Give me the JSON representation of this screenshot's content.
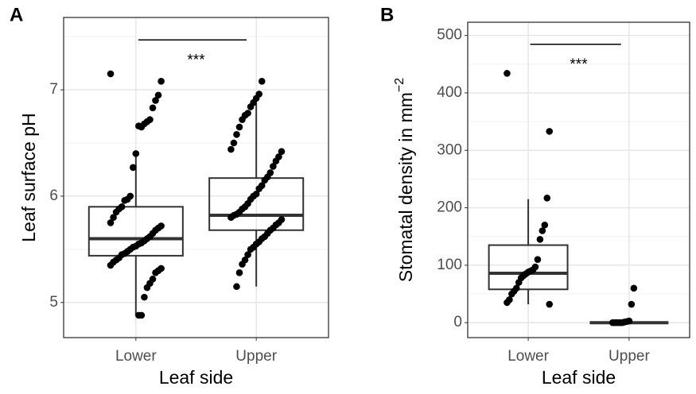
{
  "chart_data": [
    {
      "type": "box",
      "title": "A",
      "x_label": "Leaf side",
      "y_label": "Leaf surface pH",
      "categories": [
        "Lower",
        "Upper"
      ],
      "ylim": [
        4.67,
        7.68
      ],
      "yticks": [
        5,
        6,
        7
      ],
      "minor_grid": [
        5.5,
        6.5,
        7.5
      ],
      "grid": true,
      "significance": "***",
      "boxes": [
        {
          "q1": 5.44,
          "median": 5.6,
          "q3": 5.9,
          "whisker_low": 4.88,
          "whisker_high": 6.43,
          "points": [
            7.15,
            7.08,
            6.95,
            6.9,
            6.83,
            6.72,
            6.7,
            6.68,
            6.65,
            6.66,
            6.4,
            6.27,
            6.0,
            5.97,
            5.96,
            5.9,
            5.88,
            5.85,
            5.8,
            5.75,
            5.72,
            5.7,
            5.68,
            5.65,
            5.62,
            5.6,
            5.58,
            5.56,
            5.55,
            5.53,
            5.52,
            5.5,
            5.48,
            5.46,
            5.45,
            5.42,
            5.4,
            5.38,
            5.35,
            5.32,
            5.3,
            5.28,
            5.22,
            5.18,
            5.14,
            5.05,
            4.88,
            4.88
          ]
        },
        {
          "q1": 5.68,
          "median": 5.82,
          "q3": 6.17,
          "whisker_low": 5.15,
          "whisker_high": 6.87,
          "points": [
            7.08,
            6.96,
            6.92,
            6.88,
            6.84,
            6.78,
            6.76,
            6.72,
            6.65,
            6.58,
            6.5,
            6.44,
            6.42,
            6.37,
            6.33,
            6.28,
            6.22,
            6.18,
            6.15,
            6.1,
            6.07,
            6.02,
            6.0,
            5.97,
            5.93,
            5.9,
            5.88,
            5.85,
            5.83,
            5.82,
            5.8,
            5.78,
            5.75,
            5.73,
            5.7,
            5.68,
            5.65,
            5.62,
            5.6,
            5.57,
            5.55,
            5.52,
            5.5,
            5.45,
            5.4,
            5.36,
            5.28,
            5.15
          ]
        }
      ]
    },
    {
      "type": "box",
      "title": "B",
      "x_label": "Leaf side",
      "y_label": "Stomatal density in mm",
      "y_label_sup": "−2",
      "categories": [
        "Lower",
        "Upper"
      ],
      "ylim": [
        -26,
        523
      ],
      "yticks": [
        0,
        100,
        200,
        300,
        400,
        500
      ],
      "minor_grid": [
        50,
        150,
        250,
        350,
        450
      ],
      "grid": true,
      "significance": "***",
      "boxes": [
        {
          "q1": 58,
          "median": 86,
          "q3": 135,
          "whisker_low": 32,
          "whisker_high": 215,
          "points": [
            434,
            333,
            217,
            170,
            160,
            145,
            110,
            97,
            92,
            90,
            88,
            85,
            82,
            78,
            70,
            60,
            55,
            50,
            40,
            35,
            32
          ]
        },
        {
          "q1": 0,
          "median": 0,
          "q3": 0,
          "whisker_low": 0,
          "whisker_high": 0,
          "points": [
            60,
            32,
            3,
            2,
            1,
            0,
            0,
            0,
            0,
            0
          ]
        }
      ]
    }
  ]
}
